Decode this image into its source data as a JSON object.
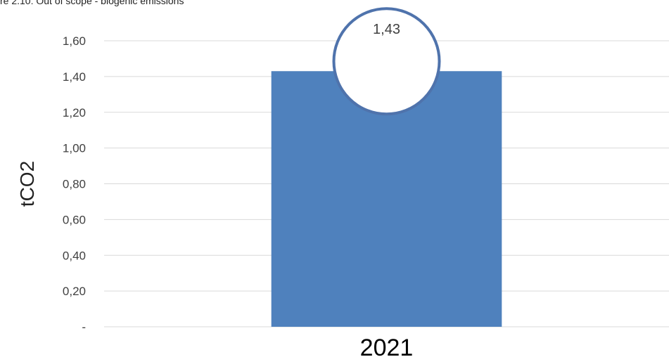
{
  "chart_data": {
    "type": "bar",
    "title": "re 2.10: Out of scope - biogenic emissions",
    "ylabel": "tCO2",
    "xlabel": "",
    "categories": [
      "2021"
    ],
    "values": [
      1.43
    ],
    "data_labels": [
      "1,43"
    ],
    "ylim": [
      0,
      1.6
    ],
    "yticks": [
      {
        "value": 0,
        "label": "-"
      },
      {
        "value": 0.2,
        "label": "0,20"
      },
      {
        "value": 0.4,
        "label": "0,40"
      },
      {
        "value": 0.6,
        "label": "0,60"
      },
      {
        "value": 0.8,
        "label": "0,80"
      },
      {
        "value": 1.0,
        "label": "1,00"
      },
      {
        "value": 1.2,
        "label": "1,20"
      },
      {
        "value": 1.4,
        "label": "1,40"
      },
      {
        "value": 1.6,
        "label": "1,60"
      }
    ],
    "grid": true,
    "legend": "none",
    "colors": {
      "bar": "#4f81bd",
      "grid": "#d9d9d9",
      "label_circle_border": "#4f73ac",
      "label_circle_fill": "#ffffff"
    }
  }
}
